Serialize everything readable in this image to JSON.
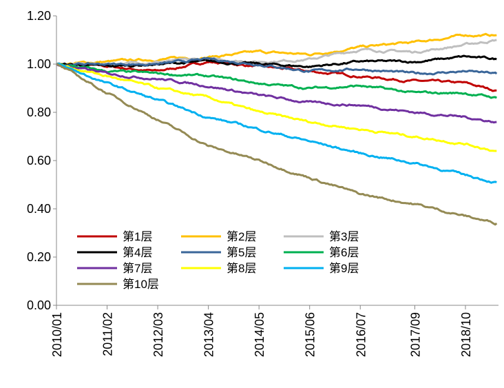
{
  "chart_data": {
    "type": "line",
    "title": "",
    "xlabel": "",
    "ylabel": "",
    "ylim": [
      0,
      1.2
    ],
    "yticks": [
      "0.00",
      "0.20",
      "0.40",
      "0.60",
      "0.80",
      "1.00",
      "1.20"
    ],
    "xticks": [
      "2010/01",
      "2011/02",
      "2012/03",
      "2013/04",
      "2014/05",
      "2015/06",
      "2016/07",
      "2017/09",
      "2018/10"
    ],
    "x": [
      "2010/01",
      "2011/02",
      "2012/03",
      "2013/04",
      "2014/05",
      "2015/06",
      "2016/07",
      "2017/09",
      "2018/10",
      "2019/06"
    ],
    "grid": false,
    "legend_position": "bottom-left",
    "series": [
      {
        "name": "第1层",
        "color": "#C00000",
        "values": [
          1.0,
          0.99,
          0.97,
          1.01,
          0.99,
          0.97,
          0.95,
          0.93,
          0.92,
          0.89
        ]
      },
      {
        "name": "第2层",
        "color": "#FFC000",
        "values": [
          1.0,
          1.01,
          1.02,
          1.03,
          1.05,
          1.04,
          1.07,
          1.09,
          1.12,
          1.12
        ]
      },
      {
        "name": "第3层",
        "color": "#BFBFBF",
        "values": [
          1.0,
          1.0,
          1.01,
          1.02,
          1.01,
          1.02,
          1.06,
          1.05,
          1.08,
          1.1
        ]
      },
      {
        "name": "第4层",
        "color": "#000000",
        "values": [
          1.0,
          0.99,
          1.0,
          1.01,
          1.0,
          0.99,
          1.01,
          1.01,
          1.03,
          1.02
        ]
      },
      {
        "name": "第5层",
        "color": "#3A6699",
        "values": [
          1.0,
          1.0,
          1.0,
          1.02,
          1.0,
          0.97,
          0.98,
          0.96,
          0.97,
          0.96
        ]
      },
      {
        "name": "第6层",
        "color": "#00B050",
        "values": [
          1.0,
          0.97,
          0.96,
          0.95,
          0.92,
          0.9,
          0.91,
          0.88,
          0.88,
          0.86
        ]
      },
      {
        "name": "第7层",
        "color": "#7030A0",
        "values": [
          1.0,
          0.96,
          0.94,
          0.91,
          0.87,
          0.84,
          0.83,
          0.8,
          0.78,
          0.76
        ]
      },
      {
        "name": "第8层",
        "color": "#FFFF00",
        "values": [
          1.0,
          0.95,
          0.9,
          0.86,
          0.8,
          0.76,
          0.73,
          0.7,
          0.67,
          0.64
        ]
      },
      {
        "name": "第9层",
        "color": "#00B0F0",
        "values": [
          1.0,
          0.92,
          0.85,
          0.78,
          0.73,
          0.68,
          0.63,
          0.59,
          0.54,
          0.51
        ]
      },
      {
        "name": "第10层",
        "color": "#948A54",
        "values": [
          1.0,
          0.88,
          0.77,
          0.66,
          0.6,
          0.53,
          0.46,
          0.42,
          0.37,
          0.34
        ]
      }
    ]
  }
}
